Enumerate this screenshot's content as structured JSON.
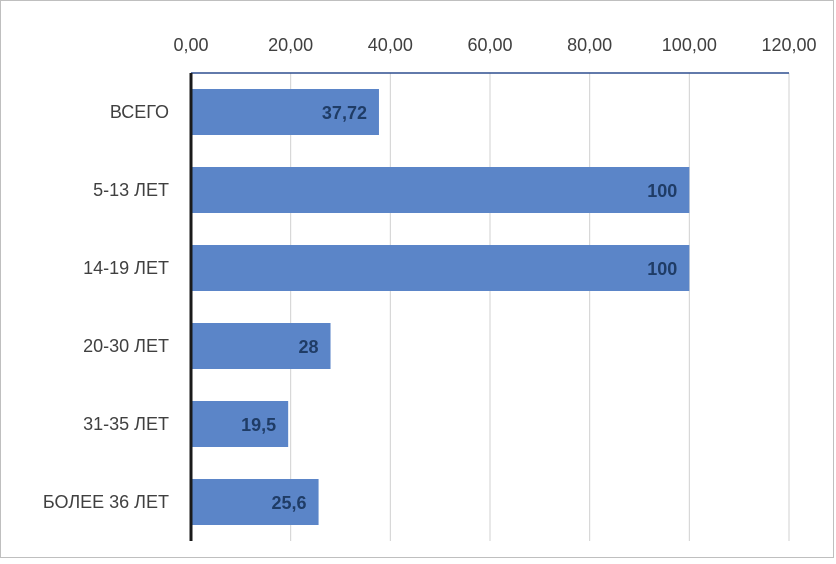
{
  "chart_data": {
    "type": "bar",
    "orientation": "horizontal",
    "categories": [
      "ВСЕГО",
      "5-13 ЛЕТ",
      "14-19 ЛЕТ",
      "20-30 ЛЕТ",
      "31-35 ЛЕТ",
      "БОЛЕЕ 36 ЛЕТ"
    ],
    "values": [
      37.72,
      100,
      100,
      28,
      19.5,
      25.6
    ],
    "data_labels": [
      "37,72",
      "100",
      "100",
      "28",
      "19,5",
      "25,6"
    ],
    "x_ticks": [
      "0,00",
      "20,00",
      "40,00",
      "60,00",
      "80,00",
      "100,00",
      "120,00"
    ],
    "xlim": [
      0,
      120
    ],
    "x_axis_position": "top",
    "grid": true,
    "legend": "none",
    "title": "",
    "xlabel": "",
    "ylabel": "",
    "colors": {
      "bar": "#5b85c8",
      "bar_label": "#1f3c66",
      "gridline": "#d0d0d0",
      "axis_line": "#2f4f8f",
      "tick_text": "#404040"
    }
  }
}
